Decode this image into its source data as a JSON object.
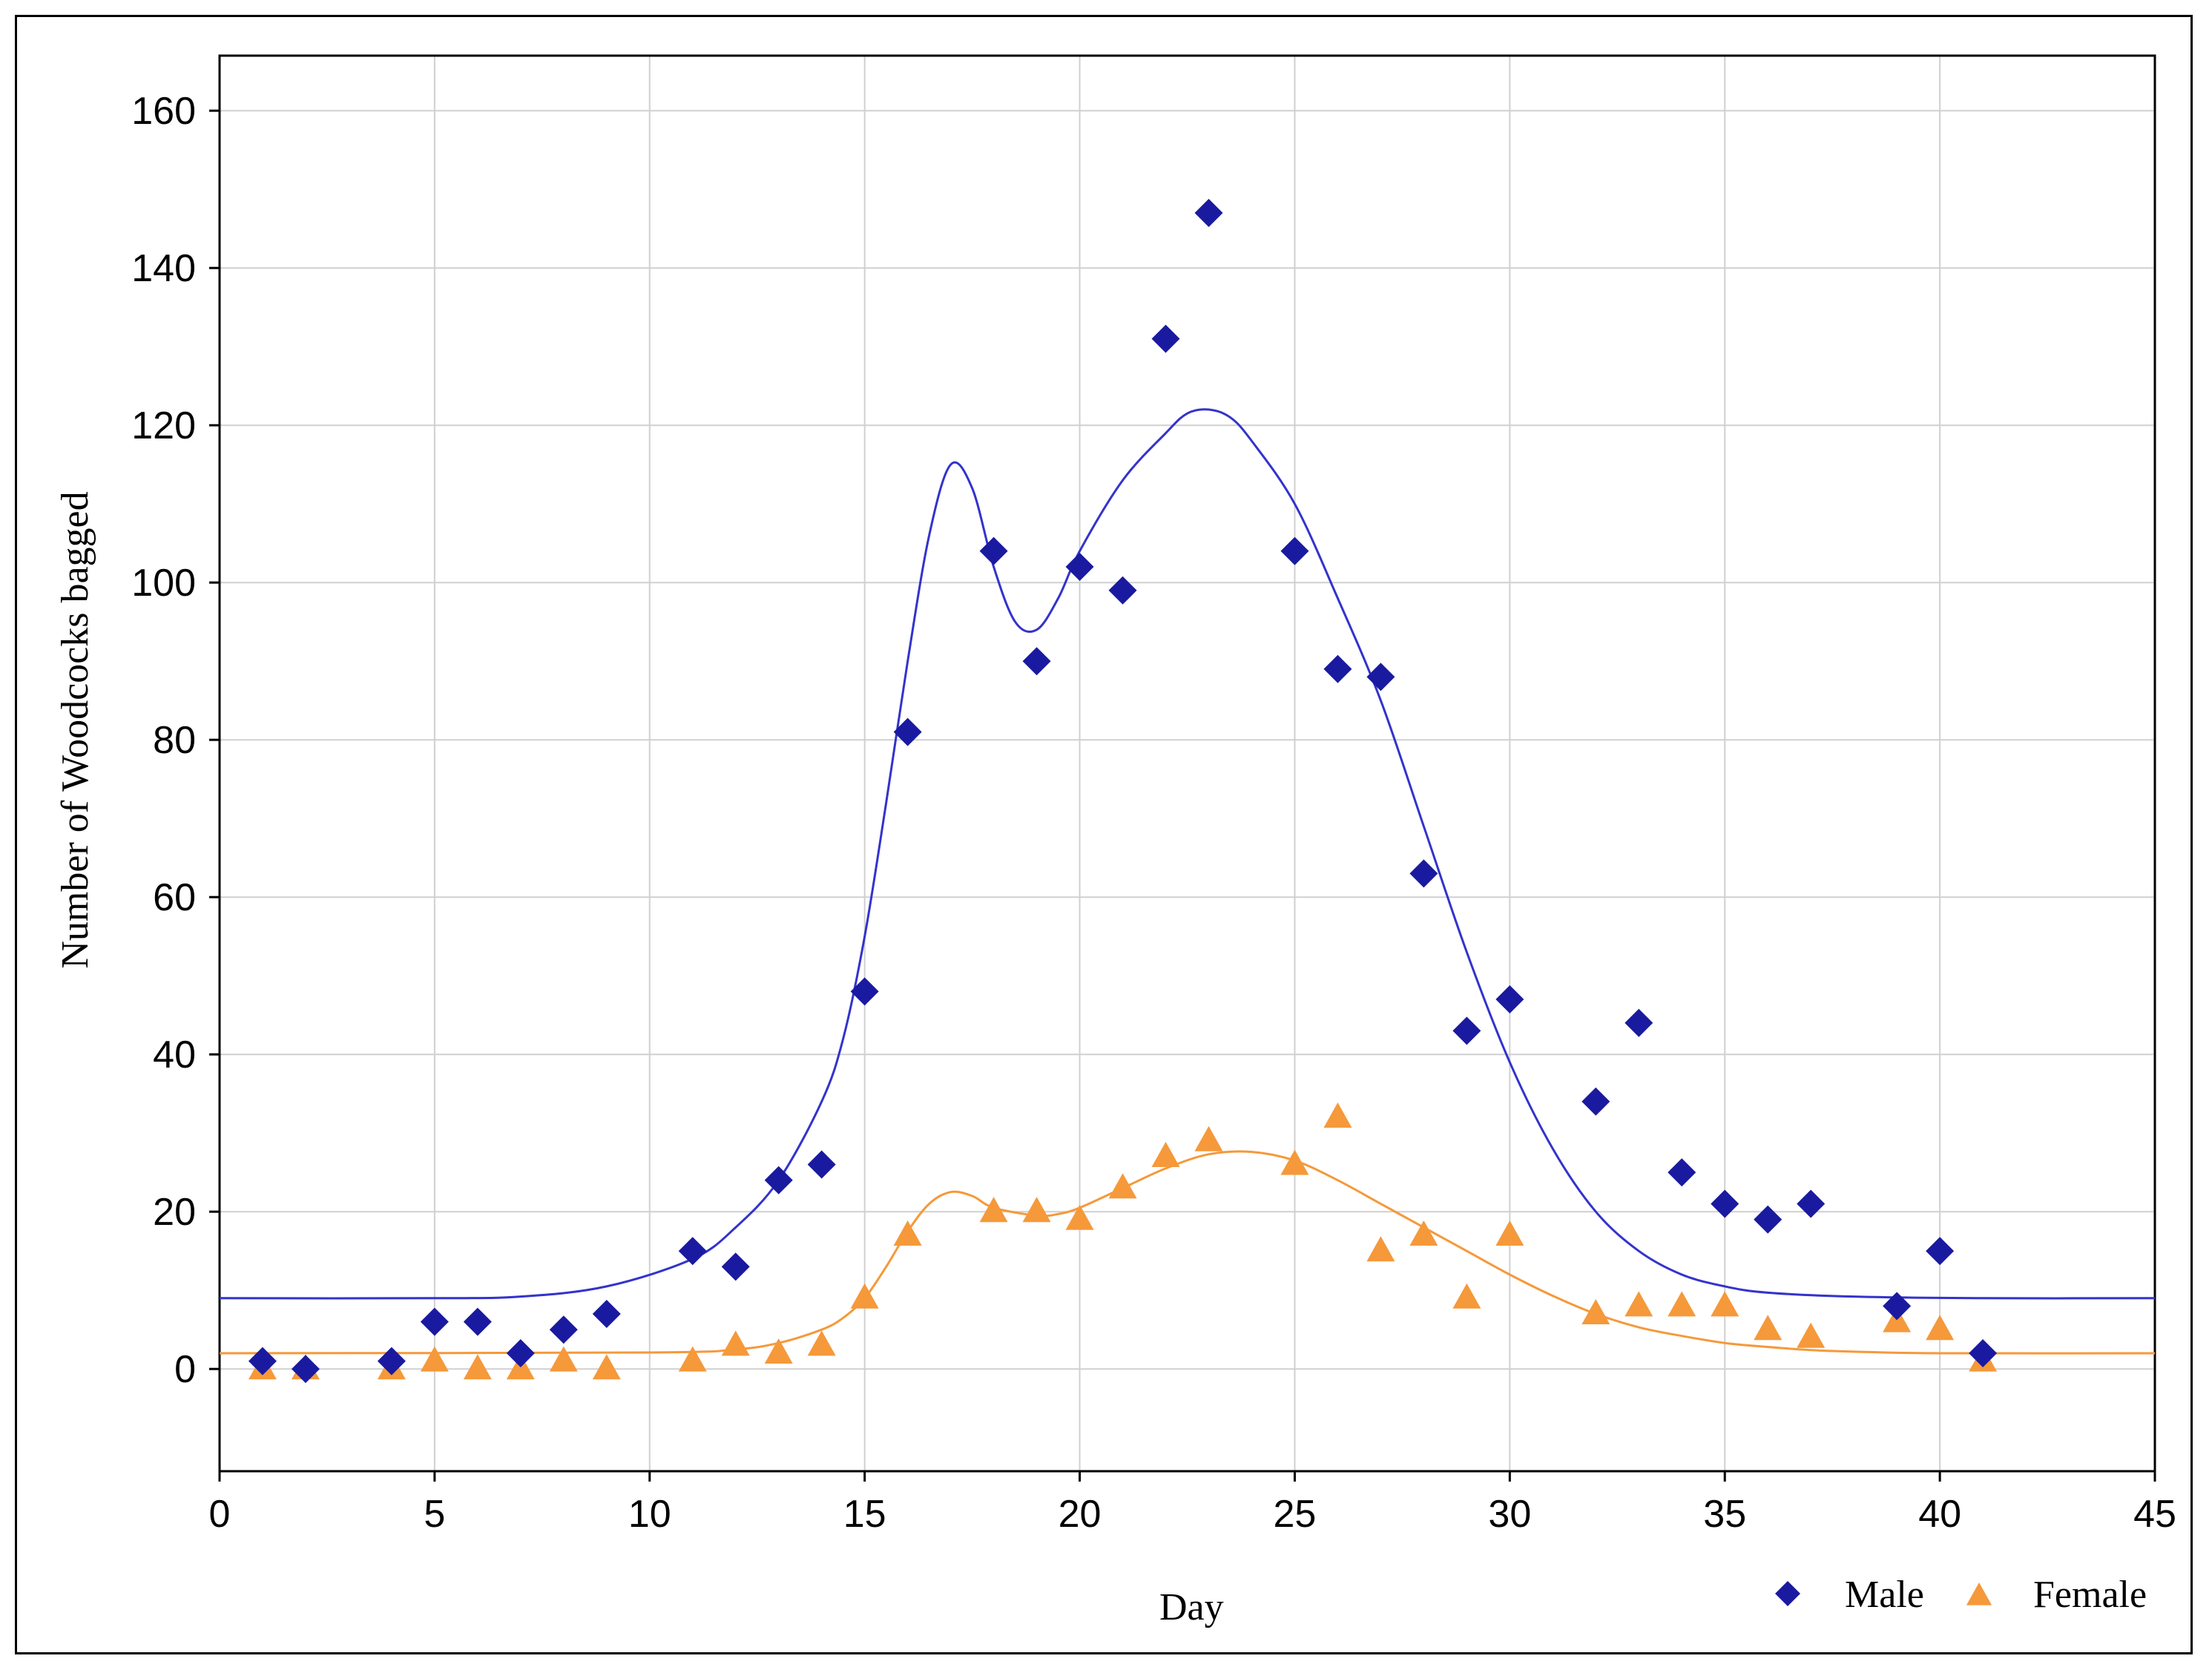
{
  "chart_data": {
    "type": "scatter",
    "title": "",
    "xlabel": "Day",
    "ylabel": "Number of Woodcocks bagged",
    "xlim": [
      0,
      45
    ],
    "ylim": [
      -13,
      167
    ],
    "xticks": [
      0,
      5,
      10,
      15,
      20,
      25,
      30,
      35,
      40,
      45
    ],
    "yticks": [
      0,
      20,
      40,
      60,
      80,
      100,
      120,
      140,
      160
    ],
    "grid": true,
    "legend_position": "bottom-right",
    "series": [
      {
        "name": "Male",
        "marker": "diamond",
        "color": "#1a1aa0",
        "points": [
          [
            1,
            1
          ],
          [
            2,
            0
          ],
          [
            4,
            1
          ],
          [
            5,
            6
          ],
          [
            6,
            6
          ],
          [
            7,
            2
          ],
          [
            8,
            5
          ],
          [
            9,
            7
          ],
          [
            11,
            15
          ],
          [
            12,
            13
          ],
          [
            13,
            24
          ],
          [
            14,
            26
          ],
          [
            15,
            48
          ],
          [
            16,
            81
          ],
          [
            18,
            104
          ],
          [
            19,
            90
          ],
          [
            20,
            102
          ],
          [
            21,
            99
          ],
          [
            22,
            131
          ],
          [
            23,
            147
          ],
          [
            25,
            104
          ],
          [
            26,
            89
          ],
          [
            27,
            88
          ],
          [
            28,
            63
          ],
          [
            29,
            43
          ],
          [
            30,
            47
          ],
          [
            32,
            34
          ],
          [
            33,
            44
          ],
          [
            34,
            25
          ],
          [
            35,
            21
          ],
          [
            36,
            19
          ],
          [
            37,
            21
          ],
          [
            39,
            8
          ],
          [
            40,
            15
          ],
          [
            41,
            2
          ]
        ],
        "fit_curve": {
          "color": "#3333cc",
          "points": [
            [
              0,
              9
            ],
            [
              5,
              9
            ],
            [
              7,
              9.2
            ],
            [
              9,
              10.5
            ],
            [
              11,
              14
            ],
            [
              12,
              18
            ],
            [
              13,
              24
            ],
            [
              14,
              34
            ],
            [
              14.5,
              42
            ],
            [
              15,
              55
            ],
            [
              15.5,
              72
            ],
            [
              16,
              90
            ],
            [
              16.5,
              106
            ],
            [
              17,
              115
            ],
            [
              17.5,
              112
            ],
            [
              18,
              102
            ],
            [
              18.5,
              95
            ],
            [
              19,
              94
            ],
            [
              19.5,
              98
            ],
            [
              20,
              104
            ],
            [
              21,
              113
            ],
            [
              22,
              119
            ],
            [
              22.5,
              121.5
            ],
            [
              23,
              122
            ],
            [
              23.5,
              121
            ],
            [
              24,
              118
            ],
            [
              25,
              110
            ],
            [
              26,
              98
            ],
            [
              27,
              85
            ],
            [
              28,
              69
            ],
            [
              29,
              53
            ],
            [
              30,
              39
            ],
            [
              31,
              28
            ],
            [
              32,
              20
            ],
            [
              33,
              15
            ],
            [
              34,
              12
            ],
            [
              35,
              10.5
            ],
            [
              36,
              9.7
            ],
            [
              38,
              9.2
            ],
            [
              41,
              9
            ],
            [
              45,
              9
            ]
          ]
        }
      },
      {
        "name": "Female",
        "marker": "triangle",
        "color": "#f5993a",
        "points": [
          [
            1,
            0
          ],
          [
            2,
            0
          ],
          [
            4,
            0
          ],
          [
            5,
            1
          ],
          [
            6,
            0
          ],
          [
            7,
            0
          ],
          [
            8,
            1
          ],
          [
            9,
            0
          ],
          [
            11,
            1
          ],
          [
            12,
            3
          ],
          [
            13,
            2
          ],
          [
            14,
            3
          ],
          [
            15,
            9
          ],
          [
            16,
            17
          ],
          [
            18,
            20
          ],
          [
            19,
            20
          ],
          [
            20,
            19
          ],
          [
            21,
            23
          ],
          [
            22,
            27
          ],
          [
            23,
            29
          ],
          [
            25,
            26
          ],
          [
            26,
            32
          ],
          [
            27,
            15
          ],
          [
            28,
            17
          ],
          [
            29,
            9
          ],
          [
            30,
            17
          ],
          [
            32,
            7
          ],
          [
            33,
            8
          ],
          [
            34,
            8
          ],
          [
            35,
            8
          ],
          [
            36,
            5
          ],
          [
            37,
            4
          ],
          [
            39,
            6
          ],
          [
            40,
            5
          ],
          [
            41,
            1
          ]
        ],
        "fit_curve": {
          "color": "#f5993a",
          "points": [
            [
              0,
              2
            ],
            [
              10,
              2.1
            ],
            [
              12,
              2.5
            ],
            [
              13,
              3.3
            ],
            [
              14,
              5
            ],
            [
              14.5,
              6.5
            ],
            [
              15,
              9
            ],
            [
              15.5,
              13
            ],
            [
              16,
              17.5
            ],
            [
              16.5,
              21
            ],
            [
              17,
              22.5
            ],
            [
              17.5,
              22
            ],
            [
              18,
              20.5
            ],
            [
              19,
              19.5
            ],
            [
              19.5,
              19.7
            ],
            [
              20,
              20.5
            ],
            [
              21,
              23
            ],
            [
              22,
              25.5
            ],
            [
              23,
              27.3
            ],
            [
              24,
              27.6
            ],
            [
              25,
              26.5
            ],
            [
              26,
              24
            ],
            [
              27,
              21
            ],
            [
              28,
              18
            ],
            [
              29,
              15
            ],
            [
              30,
              12
            ],
            [
              31,
              9.3
            ],
            [
              32,
              7
            ],
            [
              33,
              5.3
            ],
            [
              34,
              4.2
            ],
            [
              35,
              3.3
            ],
            [
              36,
              2.8
            ],
            [
              37,
              2.4
            ],
            [
              38,
              2.2
            ],
            [
              40,
              2
            ],
            [
              45,
              2
            ]
          ]
        }
      }
    ]
  }
}
